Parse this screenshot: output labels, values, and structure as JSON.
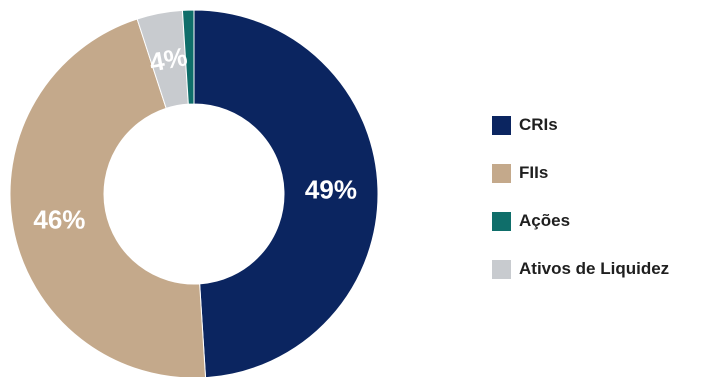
{
  "chart_data": {
    "type": "pie",
    "donut": true,
    "categories": [
      "CRIs",
      "FIIs",
      "Ações",
      "Ativos de Liquidez"
    ],
    "values": [
      49,
      46,
      1,
      4
    ],
    "labels": [
      "49%",
      "46%",
      "",
      "4%"
    ],
    "colors": [
      "#0b2560",
      "#c4a98b",
      "#0f6e6a",
      "#c8cbcf"
    ],
    "slice_order": [
      "CRIs",
      "FIIs",
      "Ativos de Liquidez",
      "Ações"
    ],
    "legend_position": "right"
  },
  "legend": {
    "items": [
      {
        "label": "CRIs",
        "color": "#0b2560"
      },
      {
        "label": "FIIs",
        "color": "#c4a98b"
      },
      {
        "label": "Ações",
        "color": "#0f6e6a"
      },
      {
        "label": "Ativos de Liquidez",
        "color": "#c8cbcf"
      }
    ]
  }
}
